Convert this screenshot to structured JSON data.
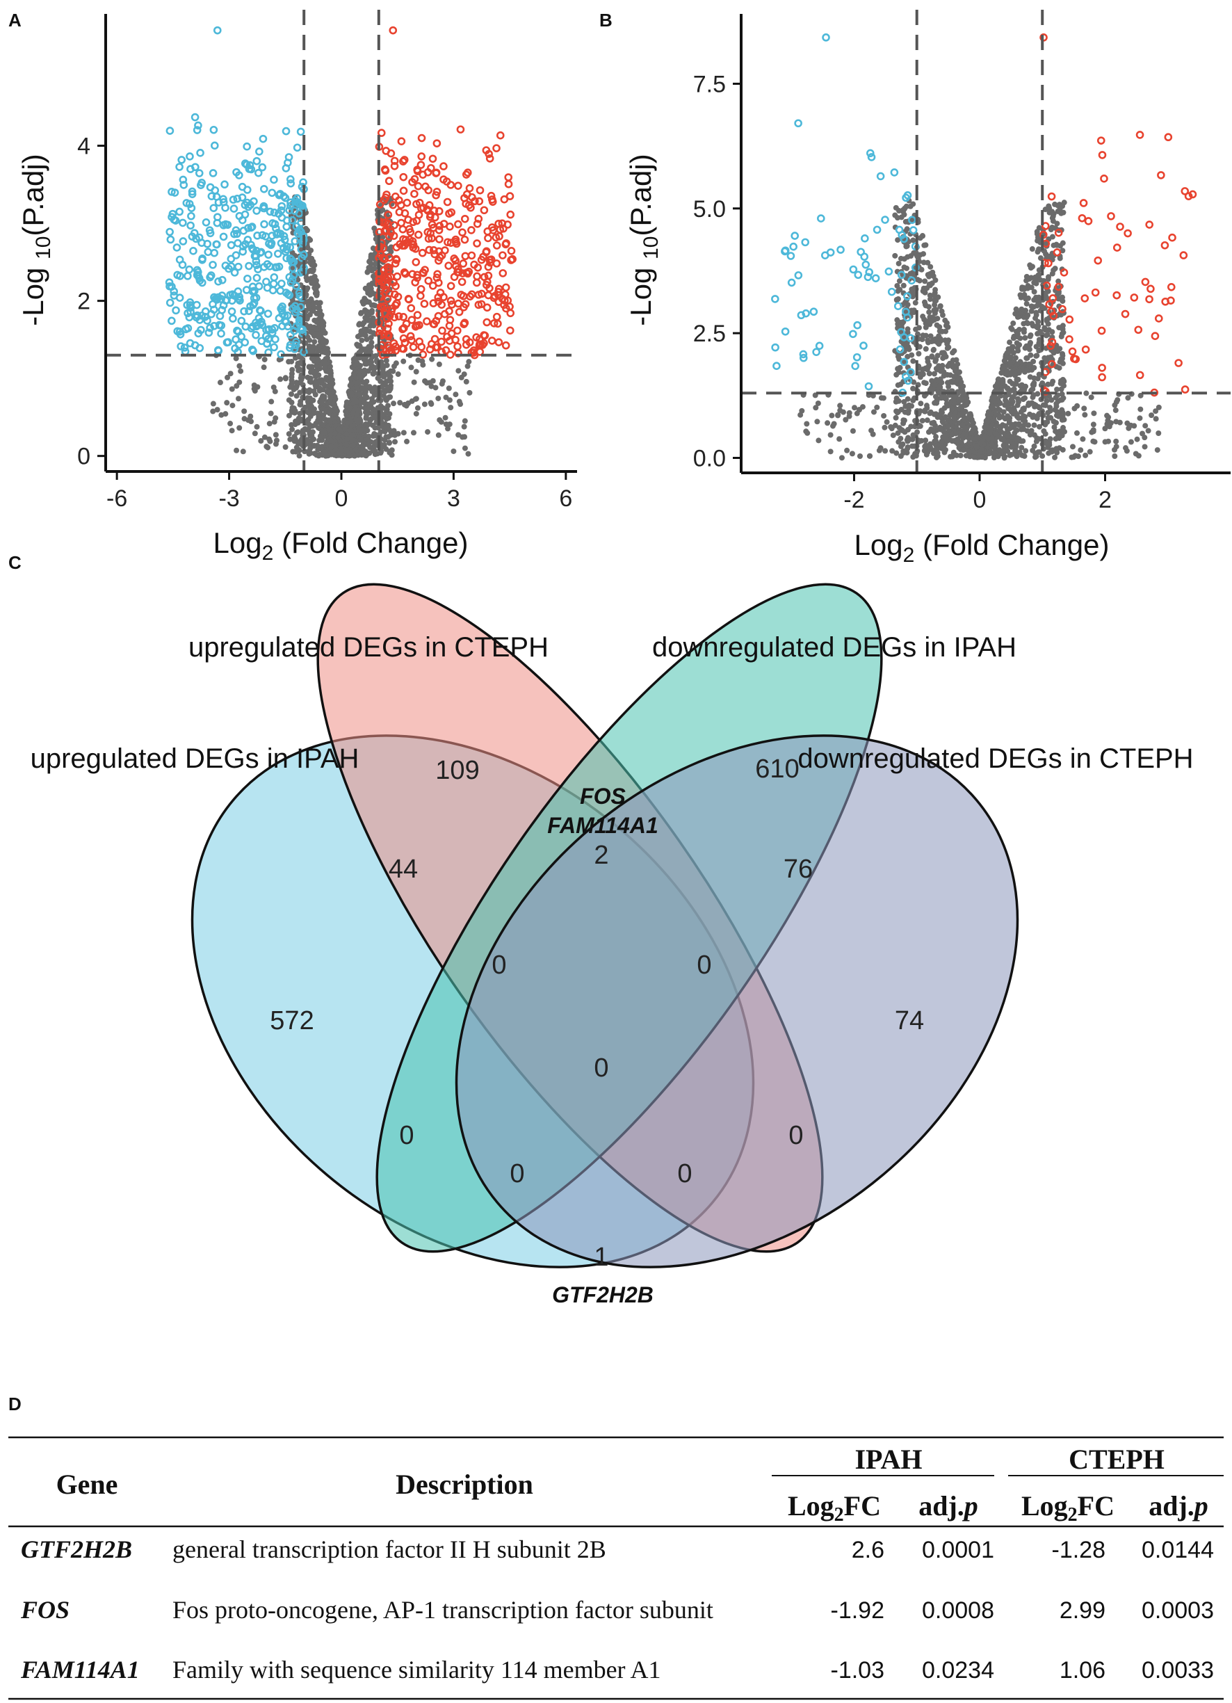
{
  "panels": {
    "a": "A",
    "b": "B",
    "c": "C",
    "d": "D"
  },
  "colors": {
    "up": "#e8432f",
    "down": "#4db8d9",
    "ns": "#6b6b6b"
  },
  "chart_data": [
    {
      "type": "scatter",
      "panel": "A",
      "xlabel": "Log",
      "xlabel_sub": "2",
      "xlabel_rest": " (Fold Change)",
      "ylabel": "-Log ",
      "ylabel_sub": "10",
      "ylabel_rest": "(P.adj)",
      "xlim": [
        -6.3,
        6.3
      ],
      "ylim": [
        -0.2,
        5.7
      ],
      "xticks": [
        -6,
        -3,
        0,
        3,
        6
      ],
      "xtick_labels": [
        "-6",
        "-3",
        "0",
        "3",
        "6"
      ],
      "yticks": [
        0,
        2,
        4
      ],
      "ytick_labels": [
        "0",
        "2",
        "4"
      ],
      "fc_threshold": 1,
      "p_threshold": 1.3,
      "fc_max": 4.6,
      "p_max": 5.6,
      "series": [
        {
          "name": "down",
          "color": "#4db8d9"
        },
        {
          "name": "ns",
          "color": "#6b6b6b"
        },
        {
          "name": "up",
          "color": "#e8432f"
        }
      ]
    },
    {
      "type": "scatter",
      "panel": "B",
      "xlabel": "Log",
      "xlabel_sub": "2",
      "xlabel_rest": " (Fold Change)",
      "ylabel": "-Log ",
      "ylabel_sub": "10",
      "ylabel_rest": "(P.adj)",
      "xlim": [
        -3.8,
        4.0
      ],
      "ylim": [
        -0.3,
        8.9
      ],
      "xticks": [
        -2,
        0,
        2
      ],
      "xtick_labels": [
        "-2",
        "0",
        "2"
      ],
      "yticks": [
        0,
        2.5,
        5,
        7.5
      ],
      "ytick_labels": [
        "0.0",
        "2.5",
        "5.0",
        "7.5"
      ],
      "fc_threshold": 1,
      "p_threshold": 1.3,
      "fc_max": 3.4,
      "p_max": 8.6,
      "series": [
        {
          "name": "down",
          "color": "#4db8d9"
        },
        {
          "name": "ns",
          "color": "#6b6b6b"
        },
        {
          "name": "up",
          "color": "#e8432f"
        }
      ]
    },
    {
      "type": "venn",
      "panel": "C",
      "sets": [
        {
          "name": "upregulated DEGs in IPAH",
          "color": "#7ccde5"
        },
        {
          "name": "upregulated DEGs in CTEPH",
          "color": "#ef8f86"
        },
        {
          "name": "downregulated DEGs in IPAH",
          "color": "#4dc2b0"
        },
        {
          "name": "downregulated DEGs in CTEPH",
          "color": "#8d98bb"
        }
      ],
      "regions": {
        "ipah_up_only": "572",
        "cteph_up_only": "109",
        "ipah_down_only": "610",
        "cteph_down_only": "74",
        "ipahup_ctephup": "44",
        "ctephup_ipahdown": "2",
        "ipahdown_ctephdown": "76",
        "ipahup_ctephup_ipahdown": "0",
        "ctephup_ipahdown_ctephdown": "0",
        "all_four": "0",
        "ipahup_ipahdown": "0",
        "ctephup_ctephdown": "0",
        "ipahup_ipahdown_ctephdown": "0",
        "ipahup_ctephup_ctephdown": "0",
        "ipahup_ctephdown": "1"
      },
      "genes_ctephup_ipahdown": [
        "FOS",
        "FAM114A1"
      ],
      "genes_ipahup_ctephdown": [
        "GTF2H2B"
      ]
    },
    {
      "type": "table",
      "panel": "D",
      "headers": {
        "gene": "Gene",
        "description": "Description",
        "group1": "IPAH",
        "group2": "CTEPH",
        "log2fc_base": "Log",
        "log2fc_sub": "2",
        "log2fc_rest": "FC",
        "adj_base": "adj.",
        "adj_italic": "p"
      },
      "rows": [
        {
          "gene": "GTF2H2B",
          "description": "general transcription factor II H subunit 2B",
          "ipah_log2fc": "2.6",
          "ipah_adjp": "0.0001",
          "cteph_log2fc": "-1.28",
          "cteph_adjp": "0.0144"
        },
        {
          "gene": "FOS",
          "description": "Fos proto-oncogene, AP-1 transcription factor subunit",
          "ipah_log2fc": "-1.92",
          "ipah_adjp": "0.0008",
          "cteph_log2fc": "2.99",
          "cteph_adjp": "0.0003"
        },
        {
          "gene": "FAM114A1",
          "description": "Family with sequence similarity 114 member A1",
          "ipah_log2fc": "-1.03",
          "ipah_adjp": "0.0234",
          "cteph_log2fc": "1.06",
          "cteph_adjp": "0.0033"
        }
      ]
    }
  ]
}
